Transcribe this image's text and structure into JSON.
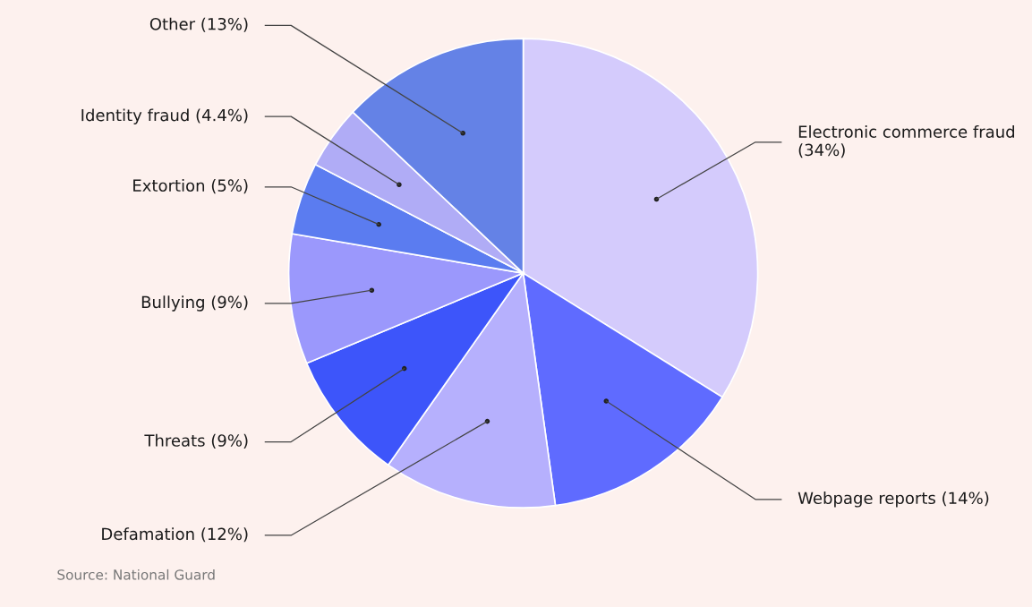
{
  "chart_data": {
    "type": "pie",
    "categories": [
      "Electronic commerce fraud",
      "Webpage reports",
      "Defamation",
      "Threats",
      "Bullying",
      "Extortion",
      "Identity fraud",
      "Other"
    ],
    "values": [
      34,
      14,
      12,
      9,
      9,
      5,
      4.4,
      13
    ],
    "value_labels": [
      "(34%)",
      "(14%)",
      "(12%)",
      "(9%)",
      "(9%)",
      "(5%)",
      "(4.4%)",
      "(13%)"
    ],
    "colors": [
      "#d4cbfc",
      "#5f6bff",
      "#b6b0fd",
      "#3d55fa",
      "#9b98fc",
      "#5b7cf0",
      "#b0acf6",
      "#6482e6"
    ],
    "annotations": [
      "Source: National Guard"
    ]
  }
}
